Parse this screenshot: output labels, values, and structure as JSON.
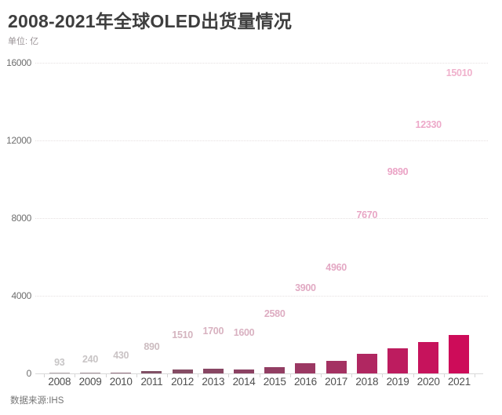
{
  "header": {
    "title": "2008-2021年全球OLED出货量情况",
    "unit_label": "单位: 亿"
  },
  "footer": {
    "source": "数据来源:IHS"
  },
  "chart_data": {
    "type": "bar",
    "title": "2008-2021年全球OLED出货量情况",
    "ylabel": "单位: 亿",
    "xlabel": "",
    "source": "数据来源:IHS",
    "categories": [
      "2008",
      "2009",
      "2010",
      "2011",
      "2012",
      "2013",
      "2014",
      "2015",
      "2016",
      "2017",
      "2018",
      "2019",
      "2020",
      "2021"
    ],
    "values": [
      93,
      240,
      430,
      890,
      1510,
      1700,
      1600,
      2580,
      3900,
      4960,
      7670,
      9890,
      12330,
      15010
    ],
    "ylim": [
      0,
      16000
    ],
    "yticks": [
      0,
      4000,
      8000,
      12000,
      16000
    ],
    "grid": "horizontal-dotted",
    "legend": "none",
    "bar_colors": [
      "#b2a6ab",
      "#a4929a",
      "#937080",
      "#815166",
      "#854c64",
      "#884663",
      "#8c4263",
      "#923e63",
      "#9b3863",
      "#a43162",
      "#b02761",
      "#bd1c5f",
      "#c6135c",
      "#cd0c59"
    ],
    "value_label_colors": [
      "#c7c5c6",
      "#c8c4c5",
      "#cac3c5",
      "#ccbcc0",
      "#d4b4bf",
      "#d8b2c0",
      "#d9b1c1",
      "#deadc2",
      "#e1aac3",
      "#e4a8c4",
      "#e8a6c5",
      "#eba4c6",
      "#eda9c9",
      "#f0b1cc"
    ]
  },
  "colors": {
    "background": "#ffffff",
    "title_text": "#3e3e3e",
    "axis_line": "#d9d9d9",
    "gridline": "#e6e0e1",
    "y_label_text": "#6e6e6e",
    "x_label_text": "#4f4f4f",
    "unit_label_text": "#9a9396",
    "source_text": "#757575"
  }
}
